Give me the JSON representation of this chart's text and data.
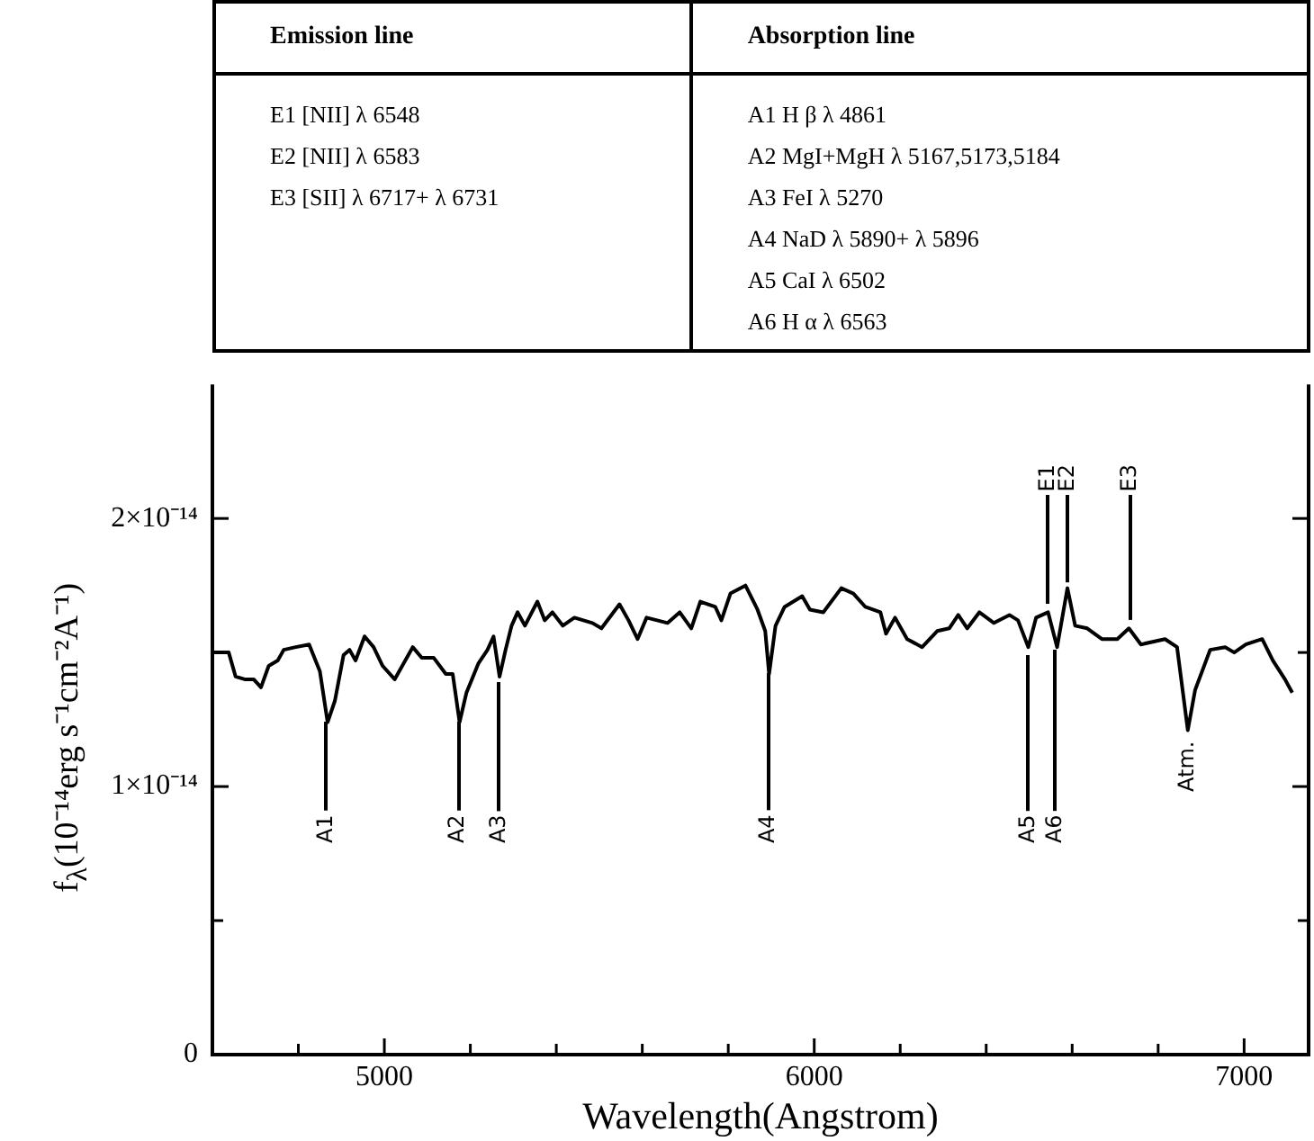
{
  "chart_data": {
    "type": "line",
    "xlabel": "Wavelength(Angstrom)",
    "ylabel": "f$_{λ}$(10⁻¹⁴erg s⁻¹cm⁻²A⁻¹)",
    "xlim": [
      4600,
      7150
    ],
    "xticks": [
      {
        "value": 4800,
        "label": null
      },
      5000,
      {
        "value": 5200,
        "label": null
      },
      {
        "value": 5400,
        "label": null
      },
      {
        "value": 5600,
        "label": null
      },
      {
        "value": 5800,
        "label": null
      },
      6000,
      {
        "value": 6200,
        "label": null
      },
      {
        "value": 6400,
        "label": null
      },
      {
        "value": 6600,
        "label": null
      },
      {
        "value": 6800,
        "label": null
      },
      7000
    ],
    "ylim": [
      0,
      2.5e-14
    ],
    "yticks": [
      0,
      {
        "value": 5e-15,
        "label": null
      },
      {
        "value": 1e-14,
        "label": "1×10⁻¹⁴"
      },
      {
        "value": 1.5e-14,
        "label": null
      },
      {
        "value": 2e-14,
        "label": "2×10⁻¹⁴"
      }
    ],
    "grid": false,
    "legend": false,
    "series": [
      {
        "color": "#000000",
        "x": [
          4604,
          4638,
          4654,
          4675,
          4696,
          4713,
          4731,
          4752,
          4766,
          4794,
          4825,
          4850,
          4868,
          4885,
          4905,
          4919,
          4933,
          4954,
          4975,
          4996,
          5024,
          5066,
          5087,
          5115,
          5143,
          5159,
          5175,
          5191,
          5219,
          5240,
          5254,
          5268,
          5282,
          5296,
          5310,
          5327,
          5356,
          5373,
          5391,
          5415,
          5442,
          5484,
          5505,
          5547,
          5568,
          5589,
          5610,
          5659,
          5687,
          5714,
          5735,
          5770,
          5784,
          5805,
          5840,
          5868,
          5886,
          5895,
          5910,
          5931,
          5972,
          5990,
          6021,
          6063,
          6091,
          6119,
          6154,
          6167,
          6188,
          6216,
          6251,
          6286,
          6314,
          6335,
          6356,
          6384,
          6418,
          6454,
          6474,
          6498,
          6516,
          6544,
          6565,
          6589,
          6607,
          6635,
          6669,
          6705,
          6732,
          6760,
          6816,
          6844,
          6869,
          6886,
          6921,
          6956,
          6977,
          7004,
          7042,
          7067,
          7095,
          7112
        ],
        "values": [
          1.5e-14,
          1.5e-14,
          1.41e-14,
          1.4e-14,
          1.4e-14,
          1.37e-14,
          1.45e-14,
          1.47e-14,
          1.51e-14,
          1.52e-14,
          1.53e-14,
          1.43e-14,
          1.24e-14,
          1.32e-14,
          1.49e-14,
          1.51e-14,
          1.47e-14,
          1.56e-14,
          1.52e-14,
          1.45e-14,
          1.4e-14,
          1.52e-14,
          1.48e-14,
          1.48e-14,
          1.42e-14,
          1.42e-14,
          1.24e-14,
          1.35e-14,
          1.46e-14,
          1.51e-14,
          1.56e-14,
          1.41e-14,
          1.51e-14,
          1.6e-14,
          1.65e-14,
          1.6e-14,
          1.69e-14,
          1.62e-14,
          1.65e-14,
          1.6e-14,
          1.63e-14,
          1.61e-14,
          1.59e-14,
          1.68e-14,
          1.62e-14,
          1.55e-14,
          1.63e-14,
          1.61e-14,
          1.65e-14,
          1.59e-14,
          1.69e-14,
          1.67e-14,
          1.62e-14,
          1.72e-14,
          1.75e-14,
          1.66e-14,
          1.58e-14,
          1.42e-14,
          1.6e-14,
          1.67e-14,
          1.71e-14,
          1.66e-14,
          1.65e-14,
          1.74e-14,
          1.72e-14,
          1.67e-14,
          1.65e-14,
          1.57e-14,
          1.63e-14,
          1.55e-14,
          1.52e-14,
          1.58e-14,
          1.59e-14,
          1.64e-14,
          1.59e-14,
          1.65e-14,
          1.61e-14,
          1.64e-14,
          1.62e-14,
          1.52e-14,
          1.63e-14,
          1.65e-14,
          1.52e-14,
          1.74e-14,
          1.6e-14,
          1.59e-14,
          1.55e-14,
          1.55e-14,
          1.59e-14,
          1.53e-14,
          1.55e-14,
          1.52e-14,
          1.21e-14,
          1.36e-14,
          1.51e-14,
          1.52e-14,
          1.5e-14,
          1.53e-14,
          1.55e-14,
          1.47e-14,
          1.4e-14,
          1.35e-14
        ]
      }
    ],
    "annotations": [
      "Emission line",
      "E1 [NII] λ 6548",
      "E2 [NII] λ 6583",
      "E3 [SII] λ 6717+ λ 6731",
      "Absorption line",
      "A1 H β λ 4861",
      "A2 MgI+MgH λ 5167,5173,5184",
      "A3 FeI λ 5270",
      "A4 NaD λ 5890+ λ 5896",
      "A5 CaI λ 6502",
      "A6 H α  λ 6563",
      {
        "text": "A1",
        "x": 4865,
        "y": 1.26e-14
      },
      {
        "text": "A2",
        "x": 5172,
        "y": 1.26e-14
      },
      {
        "text": "A3",
        "x": 5267,
        "y": 1.41e-14
      },
      {
        "text": "A4",
        "x": 5893,
        "y": 1.44e-14
      },
      {
        "text": "A5",
        "x": 6498,
        "y": 1.51e-14
      },
      {
        "text": "A6",
        "x": 6561,
        "y": 1.53e-14
      },
      {
        "text": "E1",
        "x": 6544,
        "y": 1.66e-14
      },
      {
        "text": "E2",
        "x": 6590,
        "y": 1.74e-14
      },
      {
        "text": "E3",
        "x": 6735,
        "y": 1.6e-14
      },
      {
        "text": "Atm.",
        "x": 6869,
        "y": 1.21e-14
      }
    ]
  }
}
